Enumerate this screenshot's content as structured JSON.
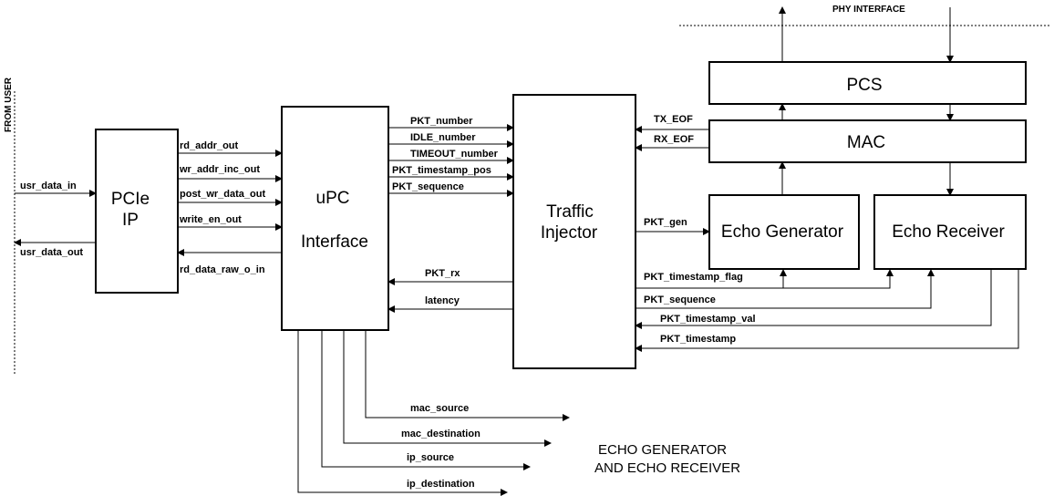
{
  "blocks": {
    "pcie_line1": "PCIe",
    "pcie_line2": "IP",
    "upc_line1": "uPC",
    "upc_line2": "Interface",
    "traffic_line1": "Traffic",
    "traffic_line2": "Injector",
    "pcs": "PCS",
    "mac": "MAC",
    "echo_generator": "Echo Generator",
    "echo_receiver": "Echo Receiver"
  },
  "side_labels": {
    "from_user": "FROM USER",
    "phy_interface": "PHY INTERFACE"
  },
  "note": {
    "line1": "ECHO GENERATOR",
    "line2": "AND ECHO RECEIVER"
  },
  "signals": {
    "usr_data_in": "usr_data_in",
    "usr_data_out": "usr_data_out",
    "rd_addr_out": "rd_addr_out",
    "wr_addr_inc_out": "wr_addr_inc_out",
    "post_wr_data_out": "post_wr_data_out",
    "write_en_out": "write_en_out",
    "rd_data_raw_o_in": "rd_data_raw_o_in",
    "pkt_number": "PKT_number",
    "idle_number": "IDLE_number",
    "timeout_number": "TIMEOUT_number",
    "pkt_timestamp_pos": "PKT_timestamp_pos",
    "pkt_sequence_out": "PKT_sequence",
    "pkt_rx": "PKT_rx",
    "latency": "latency",
    "tx_eof": "TX_EOF",
    "rx_eof": "RX_EOF",
    "pkt_gen": "PKT_gen",
    "pkt_timestamp_flag": "PKT_timestamp_flag",
    "pkt_sequence_in": "PKT_sequence",
    "pkt_timestamp_val": "PKT_timestamp_val",
    "pkt_timestamp": "PKT_timestamp",
    "mac_source": "mac_source",
    "mac_destination": "mac_destination",
    "ip_source": "ip_source",
    "ip_destination": "ip_destination"
  }
}
